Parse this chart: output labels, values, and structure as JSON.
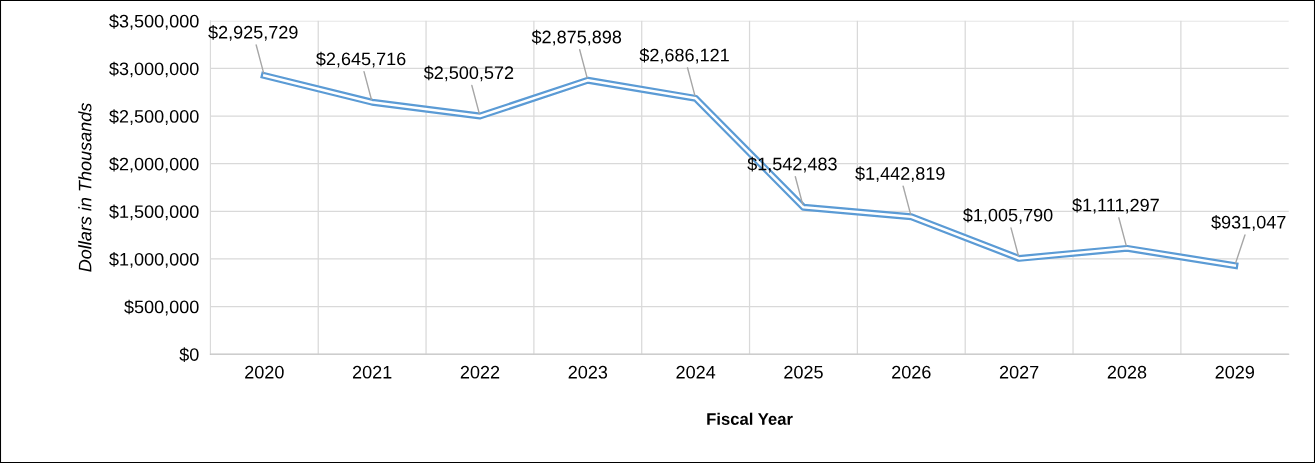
{
  "chart_data": {
    "type": "line",
    "xlabel": "Fiscal Year",
    "ylabel": "Dollars in Thousands",
    "categories": [
      "2020",
      "2021",
      "2022",
      "2023",
      "2024",
      "2025",
      "2026",
      "2027",
      "2028",
      "2029"
    ],
    "series": [
      {
        "color": "#5b9bd5",
        "values": [
          2925729,
          2645716,
          2500572,
          2875898,
          2686121,
          1542483,
          1442819,
          1005790,
          1111297,
          931047
        ],
        "value_labels": [
          "$2,925,729",
          "$2,645,716",
          "$2,500,572",
          "$2,875,898",
          "$2,686,121",
          "$1,542,483",
          "$1,442,819",
          "$1,005,790",
          "$1,111,297",
          "$931,047"
        ]
      }
    ],
    "ylim": [
      0,
      3500000
    ],
    "yticks": [
      {
        "value": 0,
        "label": "$0"
      },
      {
        "value": 500000,
        "label": "$500,000"
      },
      {
        "value": 1000000,
        "label": "$1,000,000"
      },
      {
        "value": 1500000,
        "label": "$1,500,000"
      },
      {
        "value": 2000000,
        "label": "$2,000,000"
      },
      {
        "value": 2500000,
        "label": "$2,500,000"
      },
      {
        "value": 3000000,
        "label": "$3,000,000"
      },
      {
        "value": 3500000,
        "label": "$3,500,000"
      }
    ],
    "grid": true,
    "marker": "none",
    "line_style": "solid"
  }
}
